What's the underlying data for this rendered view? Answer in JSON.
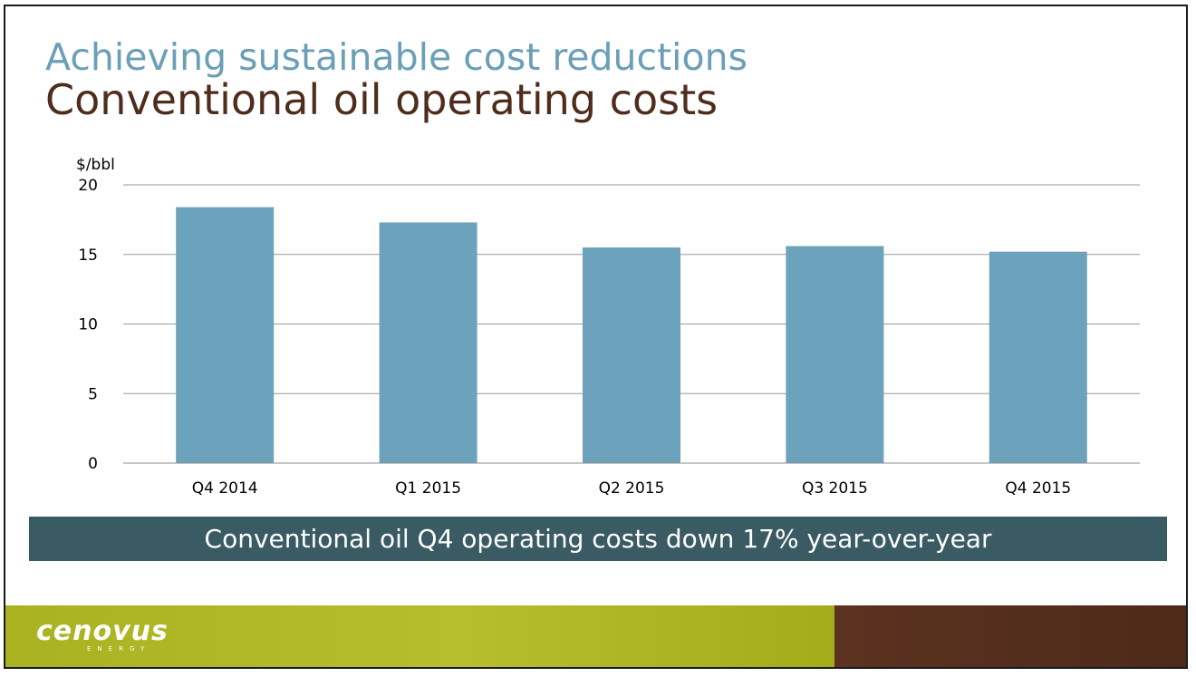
{
  "header": {
    "subtitle": "Achieving sustainable cost reductions",
    "title": "Conventional oil operating costs"
  },
  "chart_data": {
    "type": "bar",
    "title": "",
    "xlabel": "",
    "ylabel": "$/bbl",
    "categories": [
      "Q4 2014",
      "Q1 2015",
      "Q2 2015",
      "Q3 2015",
      "Q4 2015"
    ],
    "values": [
      18.4,
      17.3,
      15.5,
      15.6,
      15.2
    ],
    "ylim": [
      0,
      20
    ],
    "yticks": [
      0,
      5,
      10,
      15,
      20
    ],
    "grid": true,
    "legend": "none",
    "bar_color": "#6ca2bb"
  },
  "callout": {
    "text": "Conventional oil Q4 operating costs down 17% year-over-year",
    "color": "#3a5b63"
  },
  "footer": {
    "logo_text": "cenovus",
    "logo_subtext": "ENERGY",
    "green": "#aab41f",
    "brown": "#55301f"
  }
}
